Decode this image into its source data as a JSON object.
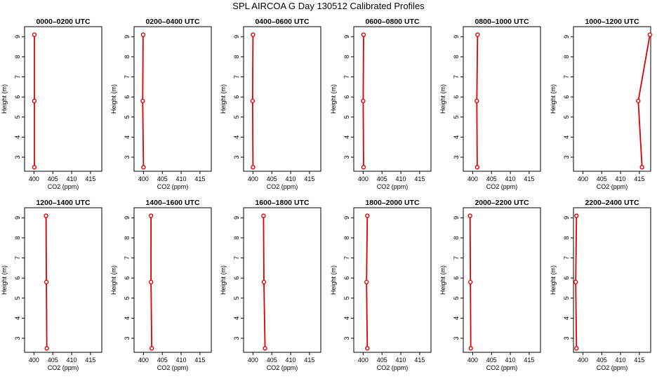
{
  "figure": {
    "title": "SPL AIRCOA G  Day 130512  Calibrated Profiles",
    "line_color": "#dd0000",
    "axis_color": "#000000"
  },
  "chart_data": [
    {
      "type": "line",
      "title": "0000–0200 UTC",
      "xlabel": "CO2 (ppm)",
      "ylabel": "Height (m)",
      "xlim": [
        397.5,
        418
      ],
      "ylim": [
        2.3,
        9.5
      ],
      "xticks": [
        400,
        405,
        410,
        415
      ],
      "yticks": [
        3,
        4,
        5,
        6,
        7,
        8,
        9
      ],
      "series": [
        {
          "x": [
            400.1,
            400.1,
            400.1
          ],
          "y": [
            2.5,
            5.8,
            9.1
          ]
        }
      ]
    },
    {
      "type": "line",
      "title": "0200–0400 UTC",
      "xlabel": "CO2 (ppm)",
      "ylabel": "Height (m)",
      "xlim": [
        397.5,
        418
      ],
      "ylim": [
        2.3,
        9.5
      ],
      "xticks": [
        400,
        405,
        410,
        415
      ],
      "yticks": [
        3,
        4,
        5,
        6,
        7,
        8,
        9
      ],
      "series": [
        {
          "x": [
            400.0,
            399.8,
            399.9
          ],
          "y": [
            2.5,
            5.8,
            9.1
          ]
        }
      ]
    },
    {
      "type": "line",
      "title": "0400–0600 UTC",
      "xlabel": "CO2 (ppm)",
      "ylabel": "Height (m)",
      "xlim": [
        397.5,
        418
      ],
      "ylim": [
        2.3,
        9.5
      ],
      "xticks": [
        400,
        405,
        410,
        415
      ],
      "yticks": [
        3,
        4,
        5,
        6,
        7,
        8,
        9
      ],
      "series": [
        {
          "x": [
            400.0,
            399.9,
            400.0
          ],
          "y": [
            2.5,
            5.8,
            9.1
          ]
        }
      ]
    },
    {
      "type": "line",
      "title": "0600–0800 UTC",
      "xlabel": "CO2 (ppm)",
      "ylabel": "Height (m)",
      "xlim": [
        397.5,
        418
      ],
      "ylim": [
        2.3,
        9.5
      ],
      "xticks": [
        400,
        405,
        410,
        415
      ],
      "yticks": [
        3,
        4,
        5,
        6,
        7,
        8,
        9
      ],
      "series": [
        {
          "x": [
            400.1,
            400.0,
            400.1
          ],
          "y": [
            2.5,
            5.8,
            9.1
          ]
        }
      ]
    },
    {
      "type": "line",
      "title": "0800–1000 UTC",
      "xlabel": "CO2 (ppm)",
      "ylabel": "Height (m)",
      "xlim": [
        397.5,
        418
      ],
      "ylim": [
        2.3,
        9.5
      ],
      "xticks": [
        400,
        405,
        410,
        415
      ],
      "yticks": [
        3,
        4,
        5,
        6,
        7,
        8,
        9
      ],
      "series": [
        {
          "x": [
            401.2,
            401.1,
            401.3
          ],
          "y": [
            2.5,
            5.8,
            9.1
          ]
        }
      ]
    },
    {
      "type": "line",
      "title": "1000–1200 UTC",
      "xlabel": "CO2 (ppm)",
      "ylabel": "Height (m)",
      "xlim": [
        397.5,
        418
      ],
      "ylim": [
        2.3,
        9.5
      ],
      "xticks": [
        400,
        405,
        410,
        415
      ],
      "yticks": [
        3,
        4,
        5,
        6,
        7,
        8,
        9
      ],
      "series": [
        {
          "x": [
            415.7,
            414.7,
            417.8
          ],
          "y": [
            2.5,
            5.8,
            9.1
          ]
        }
      ]
    },
    {
      "type": "line",
      "title": "1200–1400 UTC",
      "xlabel": "CO2 (ppm)",
      "ylabel": "Height (m)",
      "xlim": [
        397.5,
        418
      ],
      "ylim": [
        2.3,
        9.5
      ],
      "xticks": [
        400,
        405,
        410,
        415
      ],
      "yticks": [
        3,
        4,
        5,
        6,
        7,
        8,
        9
      ],
      "series": [
        {
          "x": [
            403.4,
            403.3,
            403.2
          ],
          "y": [
            2.5,
            5.8,
            9.1
          ]
        }
      ]
    },
    {
      "type": "line",
      "title": "1400–1600 UTC",
      "xlabel": "CO2 (ppm)",
      "ylabel": "Height (m)",
      "xlim": [
        397.5,
        418
      ],
      "ylim": [
        2.3,
        9.5
      ],
      "xticks": [
        400,
        405,
        410,
        415
      ],
      "yticks": [
        3,
        4,
        5,
        6,
        7,
        8,
        9
      ],
      "series": [
        {
          "x": [
            402.2,
            402.0,
            402.0
          ],
          "y": [
            2.5,
            5.8,
            9.1
          ]
        }
      ]
    },
    {
      "type": "line",
      "title": "1600–1800 UTC",
      "xlabel": "CO2 (ppm)",
      "ylabel": "Height (m)",
      "xlim": [
        397.5,
        418
      ],
      "ylim": [
        2.3,
        9.5
      ],
      "xticks": [
        400,
        405,
        410,
        415
      ],
      "yticks": [
        3,
        4,
        5,
        6,
        7,
        8,
        9
      ],
      "series": [
        {
          "x": [
            403.2,
            402.9,
            402.8
          ],
          "y": [
            2.5,
            5.8,
            9.1
          ]
        }
      ]
    },
    {
      "type": "line",
      "title": "1800–2000 UTC",
      "xlabel": "CO2 (ppm)",
      "ylabel": "Height (m)",
      "xlim": [
        397.5,
        418
      ],
      "ylim": [
        2.3,
        9.5
      ],
      "xticks": [
        400,
        405,
        410,
        415
      ],
      "yticks": [
        3,
        4,
        5,
        6,
        7,
        8,
        9
      ],
      "series": [
        {
          "x": [
            401.1,
            400.9,
            401.1
          ],
          "y": [
            2.5,
            5.8,
            9.1
          ]
        }
      ]
    },
    {
      "type": "line",
      "title": "2000–2200 UTC",
      "xlabel": "CO2 (ppm)",
      "ylabel": "Height (m)",
      "xlim": [
        397.5,
        418
      ],
      "ylim": [
        2.3,
        9.5
      ],
      "xticks": [
        400,
        405,
        410,
        415
      ],
      "yticks": [
        3,
        4,
        5,
        6,
        7,
        8,
        9
      ],
      "series": [
        {
          "x": [
            399.5,
            399.4,
            399.3
          ],
          "y": [
            2.5,
            5.8,
            9.1
          ]
        }
      ]
    },
    {
      "type": "line",
      "title": "2200–2400 UTC",
      "xlabel": "CO2 (ppm)",
      "ylabel": "Height (m)",
      "xlim": [
        397.5,
        418
      ],
      "ylim": [
        2.3,
        9.5
      ],
      "xticks": [
        400,
        405,
        410,
        415
      ],
      "yticks": [
        3,
        4,
        5,
        6,
        7,
        8,
        9
      ],
      "series": [
        {
          "x": [
            398.3,
            398.1,
            398.3
          ],
          "y": [
            2.5,
            5.8,
            9.1
          ]
        }
      ]
    }
  ]
}
